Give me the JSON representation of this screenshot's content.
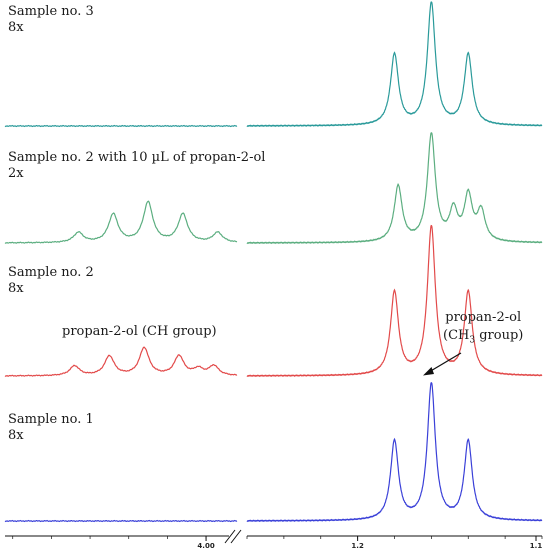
{
  "chart_data": {
    "type": "line",
    "title": "",
    "xlabel": "",
    "ylabel": "",
    "x_axis": {
      "left_segment_ticks": [
        "4.00"
      ],
      "right_segment_ticks": [
        "1.2",
        "1.1"
      ],
      "axis_break": true
    },
    "series": [
      {
        "id": "sample3",
        "name": "Sample no. 3",
        "scale": "8x",
        "color": "#2a9a9a",
        "ch_multiplet": [],
        "ch3_peaks": [
          {
            "ppm": 1.18,
            "height": 0.58
          },
          {
            "ppm": 1.16,
            "height": 1.0
          },
          {
            "ppm": 1.14,
            "height": 0.58
          }
        ]
      },
      {
        "id": "sample2b",
        "name": "Sample no. 2 with 10 µL of propan-2-ol",
        "scale": "2x",
        "color": "#5cae80",
        "ch_multiplet": [
          {
            "ppm": 4.165,
            "height": 0.17
          },
          {
            "ppm": 4.12,
            "height": 0.48
          },
          {
            "ppm": 4.075,
            "height": 0.68
          },
          {
            "ppm": 4.03,
            "height": 0.48
          },
          {
            "ppm": 3.985,
            "height": 0.17
          }
        ],
        "ch3_peaks": [
          {
            "ppm": 1.178,
            "height": 0.52
          },
          {
            "ppm": 1.16,
            "height": 1.0
          },
          {
            "ppm": 1.148,
            "height": 0.28
          },
          {
            "ppm": 1.14,
            "height": 0.42
          },
          {
            "ppm": 1.133,
            "height": 0.28
          }
        ]
      },
      {
        "id": "sample2",
        "name": "Sample no. 2",
        "scale": "8x",
        "color": "#e24a4a",
        "ch_multiplet": [
          {
            "ppm": 4.17,
            "height": 0.12
          },
          {
            "ppm": 4.125,
            "height": 0.24
          },
          {
            "ppm": 4.08,
            "height": 0.34
          },
          {
            "ppm": 4.035,
            "height": 0.24
          },
          {
            "ppm": 4.01,
            "height": 0.08
          },
          {
            "ppm": 3.99,
            "height": 0.12
          }
        ],
        "ch3_peaks": [
          {
            "ppm": 1.18,
            "height": 0.56
          },
          {
            "ppm": 1.16,
            "height": 1.0
          },
          {
            "ppm": 1.14,
            "height": 0.56
          }
        ]
      },
      {
        "id": "sample1",
        "name": "Sample no. 1",
        "scale": "8x",
        "color": "#3a40d8",
        "ch_multiplet": [],
        "ch3_peaks": [
          {
            "ppm": 1.18,
            "height": 0.58
          },
          {
            "ppm": 1.16,
            "height": 1.0
          },
          {
            "ppm": 1.14,
            "height": 0.58
          }
        ]
      }
    ],
    "annotations": [
      {
        "id": "ch-group",
        "text": "propan-2-ol (CH group)"
      },
      {
        "id": "ch3-group",
        "lines": [
          "propan-2-ol",
          "(CH",
          "3",
          " group)"
        ]
      }
    ]
  }
}
